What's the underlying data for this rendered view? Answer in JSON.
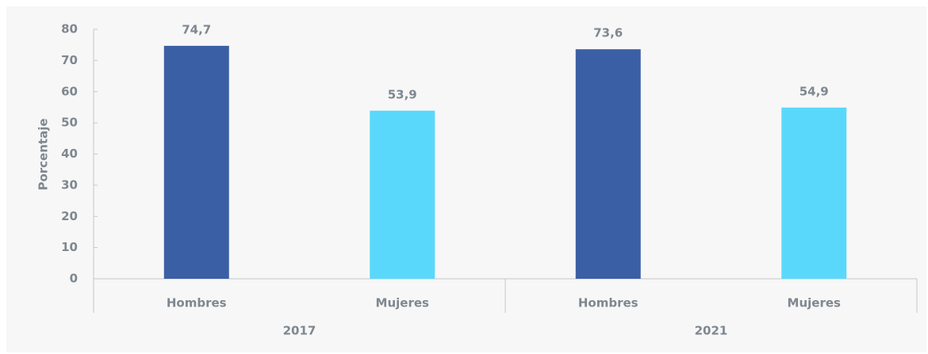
{
  "chart_data": {
    "type": "bar",
    "y_label": "Porcentaje",
    "categories": [
      "Hombres",
      "Mujeres",
      "Hombres",
      "Mujeres"
    ],
    "groups": [
      "2017",
      "2021"
    ],
    "values": [
      74.7,
      53.9,
      73.6,
      54.9
    ],
    "value_labels": [
      "74,7",
      "53,9",
      "73,6",
      "54,9"
    ],
    "colors": [
      "#3a5fa5",
      "#5ad8fc",
      "#3a5fa5",
      "#5ad8fc"
    ],
    "ylim": [
      0,
      80
    ],
    "yticks": [
      0,
      10,
      20,
      30,
      40,
      50,
      60,
      70,
      80
    ],
    "grid": false
  }
}
